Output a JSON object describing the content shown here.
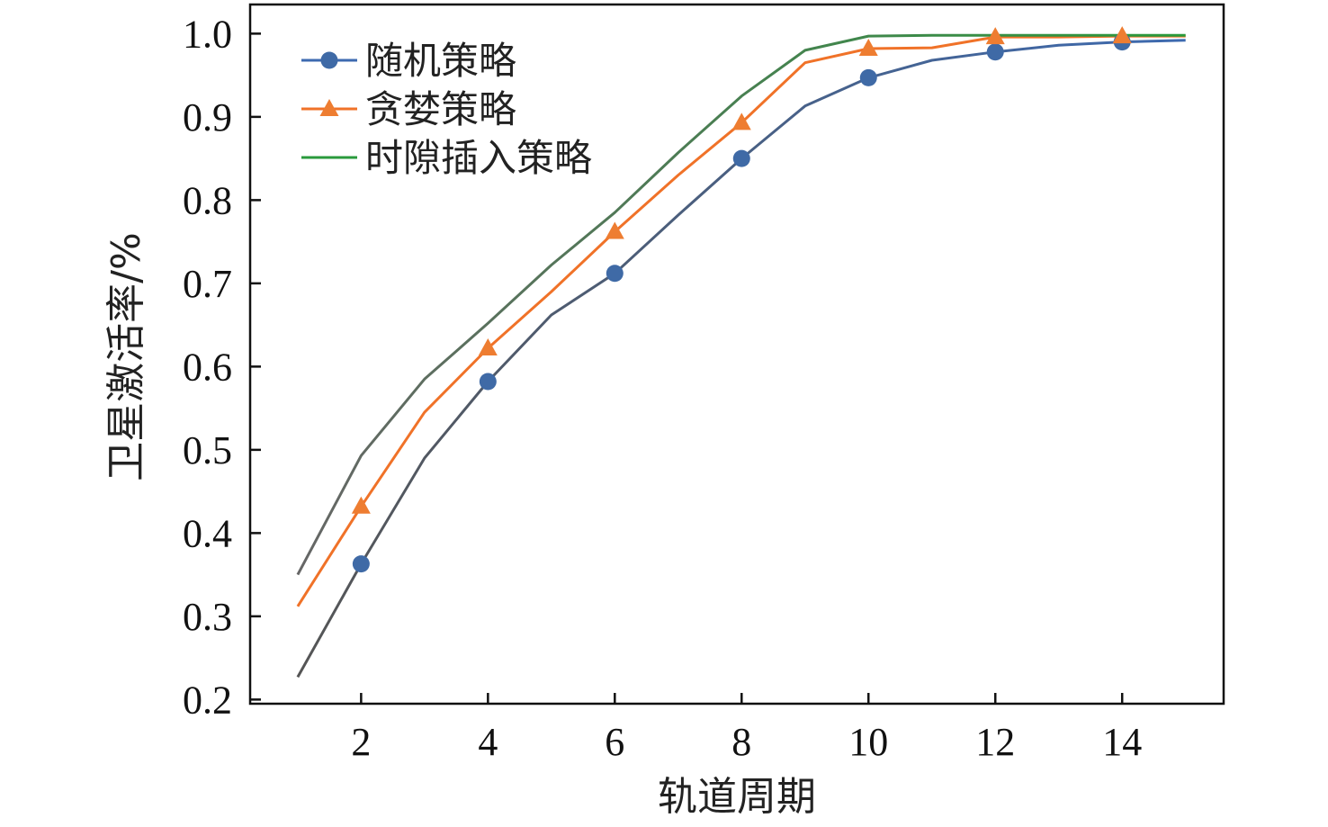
{
  "chart_data": {
    "type": "line",
    "title": "",
    "xlabel": "轨道周期",
    "ylabel": "卫星激活率/%",
    "xlim": [
      0.25,
      15.6
    ],
    "ylim": [
      0.195,
      1.035
    ],
    "xticks": [
      2,
      4,
      6,
      8,
      10,
      12,
      14
    ],
    "xtick_labels": [
      "2",
      "4",
      "6",
      "8",
      "10",
      "12",
      "14"
    ],
    "yticks": [
      0.2,
      0.3,
      0.4,
      0.5,
      0.6,
      0.7,
      0.8,
      0.9,
      1.0
    ],
    "ytick_labels": [
      "0.2",
      "0.3",
      "0.4",
      "0.5",
      "0.6",
      "0.7",
      "0.8",
      "0.9",
      "1.0"
    ],
    "grid": false,
    "legend_position": "top-left",
    "x": [
      1,
      2,
      3,
      4,
      5,
      6,
      7,
      8,
      9,
      10,
      11,
      12,
      13,
      14,
      15
    ],
    "series": [
      {
        "name": "随机策略",
        "marker": "circle",
        "values": [
          0.227,
          0.363,
          0.49,
          0.582,
          0.662,
          0.712,
          0.782,
          0.85,
          0.913,
          0.947,
          0.968,
          0.978,
          0.986,
          0.99,
          0.992
        ],
        "marker_x": [
          2,
          4,
          6,
          8,
          10,
          12,
          14
        ],
        "color_start": "#555555",
        "color_end": "#3d6ab0",
        "marker_color": "#3f6aa6"
      },
      {
        "name": "贪婪策略",
        "marker": "triangle",
        "values": [
          0.312,
          0.432,
          0.545,
          0.622,
          0.69,
          0.762,
          0.83,
          0.893,
          0.965,
          0.982,
          0.983,
          0.996,
          0.996,
          0.997,
          0.997
        ],
        "marker_x": [
          2,
          4,
          6,
          8,
          10,
          12,
          14
        ],
        "color_start": "#f07228",
        "color_end": "#f07228",
        "marker_color": "#ee7d31"
      },
      {
        "name": "时隙插入策略",
        "marker": "none",
        "values": [
          0.35,
          0.493,
          0.585,
          0.652,
          0.722,
          0.785,
          0.857,
          0.925,
          0.98,
          0.997,
          0.998,
          0.998,
          0.998,
          0.998,
          0.998
        ],
        "marker_x": [],
        "color_start": "#666666",
        "color_end": "#2a9a3c",
        "marker_color": "#666666"
      }
    ]
  }
}
